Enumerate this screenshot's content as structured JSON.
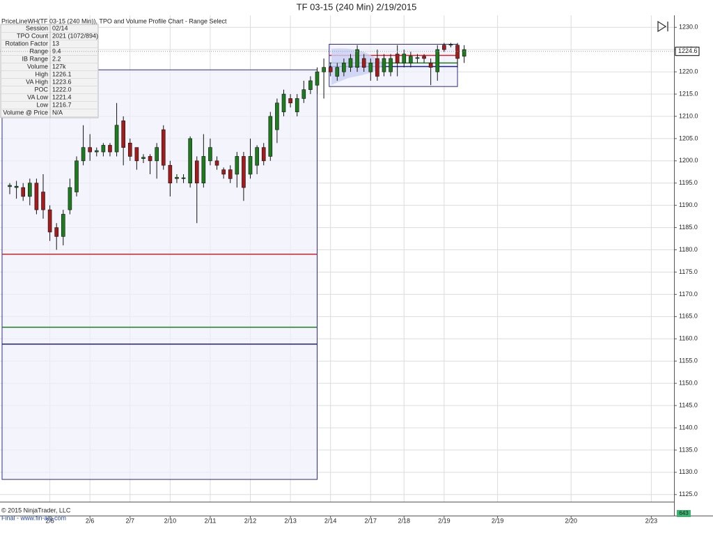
{
  "chart_data": {
    "type": "candlestick",
    "title": "TF 03-15 (240 Min)  2/19/2015",
    "subtitle": "PriceLineWH(TF 03-15 (240 Min)), TPO and Volume Profile Chart - Range Select",
    "copyright": "© 2015 NinjaTrader, LLC",
    "source": "Final - www.fin-alg.com",
    "volume_label": "643",
    "up_color": "#1e7b1e",
    "down_color": "#a31b1b",
    "grid": true,
    "xlim": [
      -1.46,
      99.4
    ],
    "xticks": [
      {
        "value": 6,
        "label": "2/5"
      },
      {
        "value": 12,
        "label": "2/6"
      },
      {
        "value": 18,
        "label": "2/7"
      },
      {
        "value": 24,
        "label": "2/10"
      },
      {
        "value": 30,
        "label": "2/11"
      },
      {
        "value": 36,
        "label": "2/12"
      },
      {
        "value": 42,
        "label": "2/13"
      },
      {
        "value": 48,
        "label": "2/14"
      },
      {
        "value": 54,
        "label": "2/17"
      },
      {
        "value": 59,
        "label": "2/18"
      },
      {
        "value": 65,
        "label": "2/19"
      },
      {
        "value": 73,
        "label": "2/19"
      },
      {
        "value": 84,
        "label": "2/20"
      },
      {
        "value": 96,
        "label": "2/23"
      }
    ],
    "ylim": [
      1123.4,
      1232.7
    ],
    "yticks": [
      {
        "value": 1125,
        "label": "1125.0"
      },
      {
        "value": 1130,
        "label": "1130.0"
      },
      {
        "value": 1135,
        "label": "1135.0"
      },
      {
        "value": 1140,
        "label": "1140.0"
      },
      {
        "value": 1145,
        "label": "1145.0"
      },
      {
        "value": 1150,
        "label": "1150.0"
      },
      {
        "value": 1155,
        "label": "1155.0"
      },
      {
        "value": 1160,
        "label": "1160.0"
      },
      {
        "value": 1165,
        "label": "1165.0"
      },
      {
        "value": 1170,
        "label": "1170.0"
      },
      {
        "value": 1175,
        "label": "1175.0"
      },
      {
        "value": 1180,
        "label": "1180.0"
      },
      {
        "value": 1185,
        "label": "1185.0"
      },
      {
        "value": 1190,
        "label": "1190.0"
      },
      {
        "value": 1195,
        "label": "1195.0"
      },
      {
        "value": 1200,
        "label": "1200.0"
      },
      {
        "value": 1205,
        "label": "1205.0"
      },
      {
        "value": 1210,
        "label": "1210.0"
      },
      {
        "value": 1215,
        "label": "1215.0"
      },
      {
        "value": 1220,
        "label": "1220.0"
      },
      {
        "value": 1225,
        "label": "1225.0"
      },
      {
        "value": 1230,
        "label": "1230.0"
      }
    ],
    "last_price": 1224.6,
    "x": [
      0,
      1,
      2,
      3,
      4,
      5,
      6,
      7,
      8,
      9,
      10,
      11,
      12,
      13,
      14,
      15,
      16,
      17,
      18,
      19,
      20,
      21,
      22,
      23,
      24,
      25,
      26,
      27,
      28,
      29,
      30,
      31,
      32,
      33,
      34,
      35,
      36,
      37,
      38,
      39,
      40,
      41,
      42,
      43,
      44,
      45,
      46,
      47,
      48,
      49,
      50,
      51,
      52,
      53,
      54,
      55,
      56,
      57,
      58,
      59,
      60,
      61,
      62,
      63,
      64,
      65,
      66,
      67,
      68
    ],
    "open": [
      1194.2,
      1194.0,
      1194,
      1192,
      1195,
      1193,
      1189,
      1185,
      1183,
      1189,
      1193,
      1200,
      1203,
      1202,
      1202,
      1203.5,
      1202,
      1209,
      1204,
      1203,
      1200.5,
      1201,
      1200,
      1207,
      1199,
      1196,
      1196,
      1195,
      1200,
      1195,
      1200,
      1200,
      1198,
      1198,
      1197,
      1201,
      1197,
      1199,
      1203,
      1201,
      1207,
      1211,
      1214,
      1211,
      1214,
      1216,
      1217,
      1220,
      1221,
      1219,
      1220,
      1221,
      1221,
      1223,
      1220,
      1223,
      1220,
      1220,
      1224,
      1222,
      1222,
      1223,
      1223.5,
      1222,
      1220,
      1226,
      1226,
      1226,
      1223.5
    ],
    "high": [
      1195,
      1195.5,
      1195,
      1196,
      1196,
      1197,
      1190,
      1186,
      1189,
      1196,
      1201,
      1208,
      1206,
      1203,
      1204,
      1204,
      1213,
      1210,
      1205,
      1203,
      1201.5,
      1201.5,
      1204,
      1208,
      1200,
      1197,
      1197,
      1205.5,
      1201,
      1206,
      1205,
      1201,
      1198.5,
      1199,
      1202,
      1202,
      1205,
      1203.5,
      1204,
      1211,
      1214,
      1216,
      1215,
      1215,
      1218,
      1219,
      1221,
      1223,
      1222,
      1222,
      1223,
      1224,
      1226,
      1224,
      1223,
      1225,
      1224,
      1224,
      1226,
      1225,
      1224.5,
      1224,
      1224,
      1223,
      1226,
      1226.5,
      1226.5,
      1226.5,
      1226
    ],
    "low": [
      1192.5,
      1191.5,
      1191,
      1190,
      1188,
      1187,
      1182,
      1180,
      1181,
      1188,
      1192,
      1199,
      1200,
      1201,
      1201,
      1201,
      1201,
      1199,
      1200,
      1198,
      1199.5,
      1197,
      1196,
      1198,
      1192,
      1195,
      1195,
      1194,
      1186,
      1194,
      1199,
      1198,
      1196,
      1195,
      1194,
      1191,
      1196,
      1197,
      1199,
      1200,
      1204,
      1210,
      1212,
      1210,
      1213,
      1215,
      1215,
      1214,
      1219,
      1218,
      1219,
      1220,
      1220,
      1220,
      1218,
      1218,
      1219,
      1219,
      1219,
      1221,
      1221,
      1222,
      1222,
      1217,
      1218,
      1224.5,
      1225.5,
      1221,
      1222
    ],
    "close": [
      1194.5,
      1194.3,
      1192,
      1195,
      1189,
      1189,
      1184,
      1183,
      1188,
      1194,
      1200,
      1203,
      1202,
      1202.3,
      1203.5,
      1202,
      1208,
      1203,
      1201,
      1200,
      1200.8,
      1200,
      1203,
      1199,
      1195,
      1196.3,
      1196.2,
      1205,
      1195,
      1201,
      1203,
      1199,
      1197,
      1196,
      1201,
      1194,
      1201,
      1203,
      1200,
      1210,
      1213,
      1215,
      1213,
      1214,
      1216,
      1218,
      1220,
      1221,
      1220,
      1221,
      1222,
      1223,
      1225,
      1221,
      1222,
      1219,
      1223,
      1223,
      1222,
      1224,
      1223.5,
      1223.2,
      1223,
      1221,
      1225,
      1225,
      1226.2,
      1223,
      1225
    ],
    "ranges": [
      {
        "x0": -1.15,
        "x1": 46.0,
        "low": 1128.4,
        "high": 1220.45,
        "va_high": 1179.0,
        "poc": 1162.6,
        "va_low": 1158.8
      },
      {
        "x0": 47.8,
        "x1": 67.0,
        "low": 1216.7,
        "high": 1226.2,
        "va_high": 1223.7,
        "poc": 1222.0,
        "va_low": 1221.2
      }
    ],
    "range_fill": "#eef0fb",
    "range_border": "#2a2a8a",
    "va_high_color": "#d0202a",
    "poc_color": "#1e7b1e",
    "va_low_color": "#1c1c9a",
    "info": {
      "rows": [
        [
          "Session",
          "02/14"
        ],
        [
          "TPO Count",
          "2021 (1072/894)"
        ],
        [
          "Rotation Factor",
          "13"
        ],
        [
          "Range",
          "9.4"
        ],
        [
          "IB Range",
          "2.2"
        ],
        [
          "Volume",
          "127k"
        ],
        [
          "High",
          "1226.1"
        ],
        [
          "VA High",
          "1223.6"
        ],
        [
          "POC",
          "1222.0"
        ],
        [
          "VA Low",
          "1221.4"
        ],
        [
          "Low",
          "1216.7"
        ],
        [
          "Volume @ Price",
          "N/A"
        ]
      ]
    }
  }
}
